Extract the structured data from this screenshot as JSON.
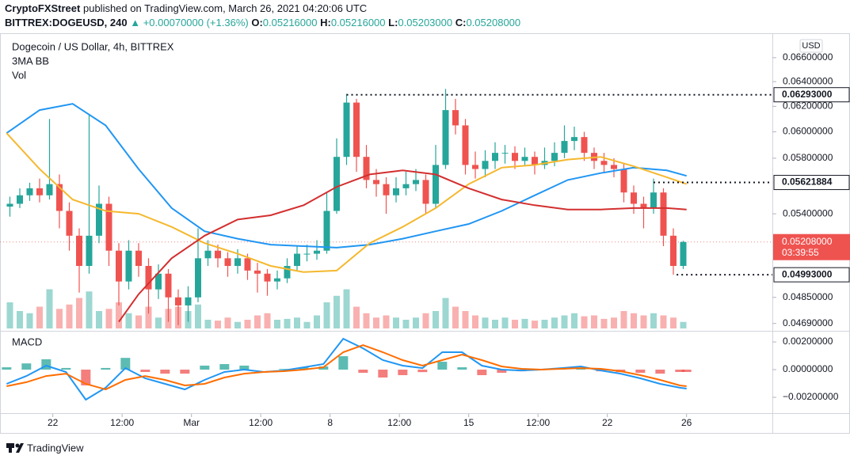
{
  "header": {
    "author": "CryptoFXStreet",
    "published": "published on TradingView.com, March 26, 2021 04:20:06 UTC",
    "symbol": "BITTREX:DOGEUSD, 240",
    "change": "+0.00070000 (+1.36%)",
    "ohlc": [
      {
        "label": "O:",
        "value": "0.05216000"
      },
      {
        "label": "H:",
        "value": "0.05216000"
      },
      {
        "label": "L:",
        "value": "0.05203000"
      },
      {
        "label": "C:",
        "value": "0.05208000"
      }
    ]
  },
  "footer": {
    "brand": "TradingView"
  },
  "chart_data": [
    {
      "type": "candlestick",
      "title": "Dogecoin / US Dollar, 4h, BITTREX",
      "indicators": [
        "3MA BB",
        "Vol"
      ],
      "currency": "USD",
      "log_scale": true,
      "grid": false,
      "up_color": "#26a69a",
      "down_color": "#ef5350",
      "xlim": [
        -2,
        232
      ],
      "xticks": [
        {
          "value": 14,
          "label": "22"
        },
        {
          "value": 35,
          "label": "12:00"
        },
        {
          "value": 56,
          "label": "Mar"
        },
        {
          "value": 77,
          "label": "12:00"
        },
        {
          "value": 98,
          "label": "8"
        },
        {
          "value": 119,
          "label": "12:00"
        },
        {
          "value": 140,
          "label": "15"
        },
        {
          "value": 161,
          "label": "12:00"
        },
        {
          "value": 182,
          "label": "22"
        },
        {
          "value": 206,
          "label": "26"
        }
      ],
      "ylim": [
        0.0466,
        0.0679
      ],
      "yticks": [
        {
          "value": 0.066,
          "label": "0.06600000"
        },
        {
          "value": 0.064,
          "label": "0.06400000"
        },
        {
          "value": 0.062,
          "label": "0.06200000"
        },
        {
          "value": 0.06,
          "label": "0.06000000"
        },
        {
          "value": 0.058,
          "label": "0.05800000"
        },
        {
          "value": 0.054,
          "label": "0.05400000"
        },
        {
          "value": 0.0485,
          "label": "0.04850000"
        },
        {
          "value": 0.0469,
          "label": "0.04690000"
        }
      ],
      "x": [
        1,
        4,
        7,
        10,
        13,
        16,
        19,
        22,
        25,
        28,
        31,
        34,
        37,
        40,
        43,
        46,
        49,
        52,
        55,
        58,
        61,
        64,
        67,
        70,
        73,
        76,
        79,
        82,
        85,
        88,
        91,
        94,
        97,
        100,
        103,
        106,
        109,
        112,
        115,
        118,
        121,
        124,
        127,
        130,
        133,
        136,
        139,
        142,
        145,
        148,
        151,
        154,
        157,
        160,
        163,
        166,
        169,
        172,
        175,
        178,
        181,
        184,
        187,
        190,
        193,
        196,
        199,
        202,
        205
      ],
      "open": [
        0.0545,
        0.0547,
        0.0553,
        0.0558,
        0.0553,
        0.0561,
        0.0542,
        0.0525,
        0.0505,
        0.0525,
        0.0547,
        0.0515,
        0.0495,
        0.0515,
        0.0505,
        0.049,
        0.05,
        0.0485,
        0.048,
        0.0485,
        0.051,
        0.0515,
        0.051,
        0.0505,
        0.051,
        0.0502,
        0.05,
        0.0495,
        0.0497,
        0.0505,
        0.0513,
        0.0513,
        0.0515,
        0.0542,
        0.0581,
        0.0623,
        0.0581,
        0.0564,
        0.0561,
        0.0553,
        0.0558,
        0.0561,
        0.0564,
        0.0547,
        0.0575,
        0.0617,
        0.0605,
        0.0575,
        0.0572,
        0.0578,
        0.0584,
        0.0584,
        0.0578,
        0.0581,
        0.0575,
        0.0578,
        0.0584,
        0.0593,
        0.0596,
        0.0584,
        0.0578,
        0.0575,
        0.0572,
        0.0555,
        0.0547,
        0.0544,
        0.0555,
        0.0525,
        0.0505
      ],
      "high": [
        0.0552,
        0.0558,
        0.0562,
        0.0565,
        0.061,
        0.0568,
        0.0548,
        0.053,
        0.0614,
        0.056,
        0.0552,
        0.052,
        0.0522,
        0.052,
        0.051,
        0.0506,
        0.0503,
        0.049,
        0.0492,
        0.053,
        0.0522,
        0.0519,
        0.0514,
        0.0516,
        0.0513,
        0.0507,
        0.0503,
        0.0502,
        0.051,
        0.0518,
        0.0519,
        0.0522,
        0.0555,
        0.0595,
        0.063,
        0.0626,
        0.059,
        0.0572,
        0.0566,
        0.0566,
        0.057,
        0.0572,
        0.0568,
        0.059,
        0.0634,
        0.0626,
        0.061,
        0.0585,
        0.0586,
        0.0592,
        0.059,
        0.0589,
        0.0588,
        0.0585,
        0.0588,
        0.0592,
        0.0605,
        0.0604,
        0.06,
        0.0588,
        0.0584,
        0.058,
        0.0576,
        0.056,
        0.0552,
        0.0565,
        0.0558,
        0.053,
        0.05216
      ],
      "low": [
        0.0538,
        0.0544,
        0.0549,
        0.0548,
        0.055,
        0.053,
        0.0515,
        0.0488,
        0.05,
        0.052,
        0.0505,
        0.048,
        0.049,
        0.0498,
        0.0475,
        0.0484,
        0.047,
        0.0468,
        0.047,
        0.0482,
        0.0505,
        0.0504,
        0.0498,
        0.05,
        0.0496,
        0.0488,
        0.0486,
        0.049,
        0.0494,
        0.0502,
        0.0508,
        0.0509,
        0.0513,
        0.054,
        0.0575,
        0.057,
        0.0558,
        0.0552,
        0.054,
        0.0548,
        0.0553,
        0.0556,
        0.054,
        0.0544,
        0.0572,
        0.0598,
        0.0568,
        0.0565,
        0.0566,
        0.0572,
        0.0576,
        0.0572,
        0.0574,
        0.0568,
        0.0572,
        0.0574,
        0.058,
        0.0586,
        0.0578,
        0.0572,
        0.057,
        0.0566,
        0.0548,
        0.054,
        0.053,
        0.054,
        0.0518,
        0.04993,
        0.0503
      ],
      "close": [
        0.0547,
        0.0553,
        0.0558,
        0.0553,
        0.0561,
        0.0542,
        0.0525,
        0.0505,
        0.0525,
        0.0547,
        0.0515,
        0.0495,
        0.0515,
        0.0505,
        0.049,
        0.05,
        0.0485,
        0.048,
        0.0485,
        0.051,
        0.0515,
        0.051,
        0.0505,
        0.051,
        0.0502,
        0.05,
        0.0495,
        0.0497,
        0.0505,
        0.0513,
        0.0513,
        0.0515,
        0.0542,
        0.0581,
        0.0623,
        0.0581,
        0.0564,
        0.0561,
        0.0553,
        0.0558,
        0.0561,
        0.0564,
        0.0547,
        0.0575,
        0.0617,
        0.0605,
        0.0575,
        0.0572,
        0.0578,
        0.0584,
        0.0584,
        0.0578,
        0.0581,
        0.0575,
        0.0578,
        0.0584,
        0.0593,
        0.0596,
        0.0584,
        0.0578,
        0.0575,
        0.0572,
        0.0555,
        0.0547,
        0.0544,
        0.0555,
        0.0525,
        0.0505,
        0.05208
      ],
      "volume": [
        60,
        40,
        35,
        50,
        90,
        45,
        55,
        70,
        85,
        40,
        45,
        60,
        35,
        30,
        50,
        25,
        45,
        50,
        40,
        55,
        20,
        18,
        25,
        15,
        20,
        30,
        35,
        20,
        22,
        25,
        15,
        30,
        60,
        75,
        90,
        50,
        35,
        25,
        30,
        25,
        20,
        25,
        35,
        40,
        70,
        50,
        40,
        30,
        25,
        20,
        25,
        20,
        22,
        18,
        20,
        25,
        30,
        35,
        28,
        30,
        22,
        25,
        40,
        35,
        30,
        35,
        30,
        25,
        15
      ],
      "series": [
        {
          "color": "#2196f3",
          "x": [
            0,
            10,
            20,
            30,
            40,
            50,
            60,
            70,
            80,
            90,
            100,
            110,
            120,
            130,
            140,
            150,
            160,
            170,
            180,
            190,
            200,
            206
          ],
          "values": [
            0.0599,
            0.0617,
            0.0622,
            0.0605,
            0.0572,
            0.0544,
            0.0528,
            0.0523,
            0.0519,
            0.0518,
            0.0517,
            0.0519,
            0.0523,
            0.0528,
            0.0533,
            0.0542,
            0.0553,
            0.0564,
            0.0569,
            0.0573,
            0.0571,
            0.0567
          ]
        },
        {
          "color": "#f5b82e",
          "x": [
            0,
            10,
            20,
            30,
            40,
            50,
            60,
            70,
            80,
            90,
            100,
            110,
            120,
            130,
            140,
            150,
            160,
            170,
            180,
            190,
            200,
            206
          ],
          "values": [
            0.0599,
            0.0572,
            0.055,
            0.0542,
            0.054,
            0.0531,
            0.052,
            0.0513,
            0.0505,
            0.0501,
            0.0502,
            0.052,
            0.0531,
            0.0544,
            0.0561,
            0.0573,
            0.0575,
            0.0579,
            0.0581,
            0.0574,
            0.0566,
            0.0561
          ]
        },
        {
          "color": "#d32f2f",
          "x": [
            34,
            40,
            50,
            60,
            70,
            80,
            90,
            100,
            110,
            120,
            130,
            140,
            150,
            160,
            170,
            180,
            190,
            200,
            206
          ],
          "values": [
            0.047,
            0.0487,
            0.051,
            0.0525,
            0.0536,
            0.0539,
            0.0546,
            0.0559,
            0.0568,
            0.0571,
            0.0568,
            0.0558,
            0.055,
            0.0546,
            0.0543,
            0.0543,
            0.0544,
            0.0544,
            0.0543
          ]
        }
      ],
      "price_lines": [
        {
          "value": 0.06293,
          "label": "0.06293000",
          "x": 103
        },
        {
          "value": 0.05621884,
          "label": "0.05621884",
          "x": 196
        },
        {
          "value": 0.04993,
          "label": "0.04993000",
          "x": 203
        }
      ],
      "last_price": {
        "value": 0.05208,
        "label": "0.05208000",
        "countdown": "03:39:55",
        "color": "#ef5350"
      }
    },
    {
      "type": "macd",
      "title": "MACD",
      "xlim": [
        -2,
        232
      ],
      "ylim": [
        -0.00303,
        0.00269
      ],
      "yticks": [
        {
          "value": 0.002,
          "label": "0.00200000"
        },
        {
          "value": 0,
          "label": "0.00000000"
        },
        {
          "value": -0.002,
          "label": "−0.00200000"
        }
      ],
      "x": [
        0,
        6,
        12,
        18,
        24,
        30,
        36,
        42,
        48,
        54,
        60,
        66,
        72,
        78,
        84,
        90,
        96,
        102,
        108,
        114,
        120,
        126,
        132,
        138,
        144,
        150,
        156,
        162,
        168,
        174,
        180,
        186,
        192,
        198,
        204,
        206
      ],
      "series": [
        {
          "color": "#2196f3",
          "values": [
            -0.00103,
            -0.00046,
            0.00029,
            -0.00017,
            -0.00217,
            -0.00131,
            0.00011,
            -0.00063,
            -0.00103,
            -0.00143,
            -0.00074,
            -0.00017,
            0,
            -0.00017,
            -6e-05,
            0.00017,
            0.0004,
            0.00223,
            0.00154,
            0.00069,
            0.00029,
            0.00011,
            0.00126,
            0.00126,
            0.00029,
            0,
            -6e-05,
            0,
            0.00011,
            0.00023,
            -6e-05,
            -0.00029,
            -0.00063,
            -0.00103,
            -0.00131,
            -0.00137
          ]
        },
        {
          "color": "#ff6d00",
          "values": [
            -0.0012,
            -0.00091,
            -0.00046,
            -0.00029,
            -0.00103,
            -0.00143,
            -0.00074,
            -0.00046,
            -0.00074,
            -0.00114,
            -0.00103,
            -0.00057,
            -0.00029,
            -0.00017,
            -0.00011,
            0,
            0.00017,
            0.00126,
            0.00177,
            0.00126,
            0.00069,
            0.00029,
            0.00069,
            0.00109,
            0.00069,
            0.00023,
            6e-05,
            0,
            6e-05,
            0.00011,
            6e-05,
            -0.00011,
            -0.0004,
            -0.00074,
            -0.00114,
            -0.0012
          ]
        }
      ],
      "histogram": {
        "up_color": "#26a69a",
        "down_color": "#ef5350",
        "values": [
          0.00017,
          0.00045,
          0.00075,
          0.00012,
          -0.00114,
          0.00012,
          0.00085,
          -0.00017,
          -0.00029,
          -0.00029,
          0.00029,
          0.0004,
          0.00029,
          0,
          5e-05,
          0.00017,
          0.00023,
          0.00097,
          -0.00023,
          -0.00057,
          -0.0004,
          -0.00018,
          0.00057,
          0.00017,
          -0.0004,
          -0.00023,
          -0.00012,
          0,
          5e-05,
          0.00012,
          -0.00012,
          -0.00018,
          -0.00023,
          -0.00029,
          -0.00017,
          -0.00017
        ]
      }
    }
  ]
}
